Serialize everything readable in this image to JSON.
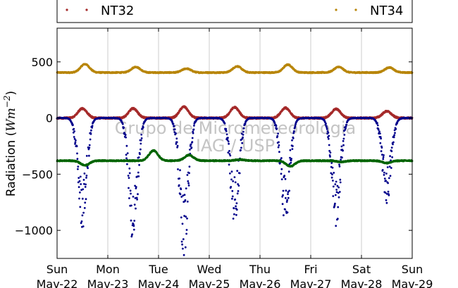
{
  "chart_data": {
    "type": "scatter",
    "ylabel_text": "Radiation (",
    "ylabel_math": "Wm",
    "ylabel_exp": "−2",
    "ylabel_close": ")",
    "ylim": [
      -1250,
      800
    ],
    "xlim_days": [
      0,
      7
    ],
    "yticks": [
      {
        "value": 500,
        "label": "500"
      },
      {
        "value": 0,
        "label": "0"
      },
      {
        "value": -500,
        "label": "−500"
      },
      {
        "value": -1000,
        "label": "−1000"
      }
    ],
    "xticks": [
      {
        "day": 0,
        "weekday": "Sun",
        "date": "Mav-22"
      },
      {
        "day": 1,
        "weekday": "Mon",
        "date": "Mav-23"
      },
      {
        "day": 2,
        "weekday": "Tue",
        "date": "Mav-24"
      },
      {
        "day": 3,
        "weekday": "Wed",
        "date": "Mav-25"
      },
      {
        "day": 4,
        "weekday": "Thu",
        "date": "Mav-26"
      },
      {
        "day": 5,
        "weekday": "Fri",
        "date": "Mav-27"
      },
      {
        "day": 6,
        "weekday": "Sat",
        "date": "Mav-28"
      },
      {
        "day": 7,
        "weekday": "Sun",
        "date": "Mav-29"
      }
    ],
    "grid": {
      "vertical": true,
      "horizontal": false
    },
    "legend": {
      "placement": "top",
      "entries": [
        "NT32",
        "NT34"
      ]
    },
    "watermark": [
      "Grupo de Micrometeorologia",
      "IAG / USP"
    ],
    "series": [
      {
        "name": "NT34",
        "color": "#b8860b",
        "base": 405,
        "peaks": [
          [
            0.55,
            480
          ],
          [
            1.55,
            455
          ],
          [
            2.55,
            440
          ],
          [
            3.55,
            460
          ],
          [
            4.55,
            475
          ],
          [
            5.55,
            455
          ],
          [
            6.55,
            450
          ]
        ]
      },
      {
        "name": "NT32",
        "color": "#a52a2a",
        "base": 0,
        "peaks": [
          [
            0.5,
            85
          ],
          [
            1.5,
            85
          ],
          [
            2.5,
            100
          ],
          [
            3.5,
            95
          ],
          [
            4.5,
            90
          ],
          [
            5.5,
            80
          ],
          [
            6.5,
            60
          ]
        ]
      },
      {
        "color": "#00008b",
        "base": 0,
        "peaks": [
          [
            0.5,
            -780
          ],
          [
            1.5,
            -880
          ],
          [
            2.5,
            -950
          ],
          [
            3.5,
            -730
          ],
          [
            4.5,
            -740
          ],
          [
            5.5,
            -750
          ],
          [
            6.5,
            -600
          ]
        ]
      },
      {
        "color": "#006400",
        "base": -380,
        "peaks": [
          [
            0.55,
            -420
          ],
          [
            1.9,
            -290
          ],
          [
            2.6,
            -330
          ],
          [
            3.6,
            -370
          ],
          [
            4.6,
            -430
          ],
          [
            5.6,
            -390
          ],
          [
            6.5,
            -400
          ]
        ]
      }
    ]
  }
}
